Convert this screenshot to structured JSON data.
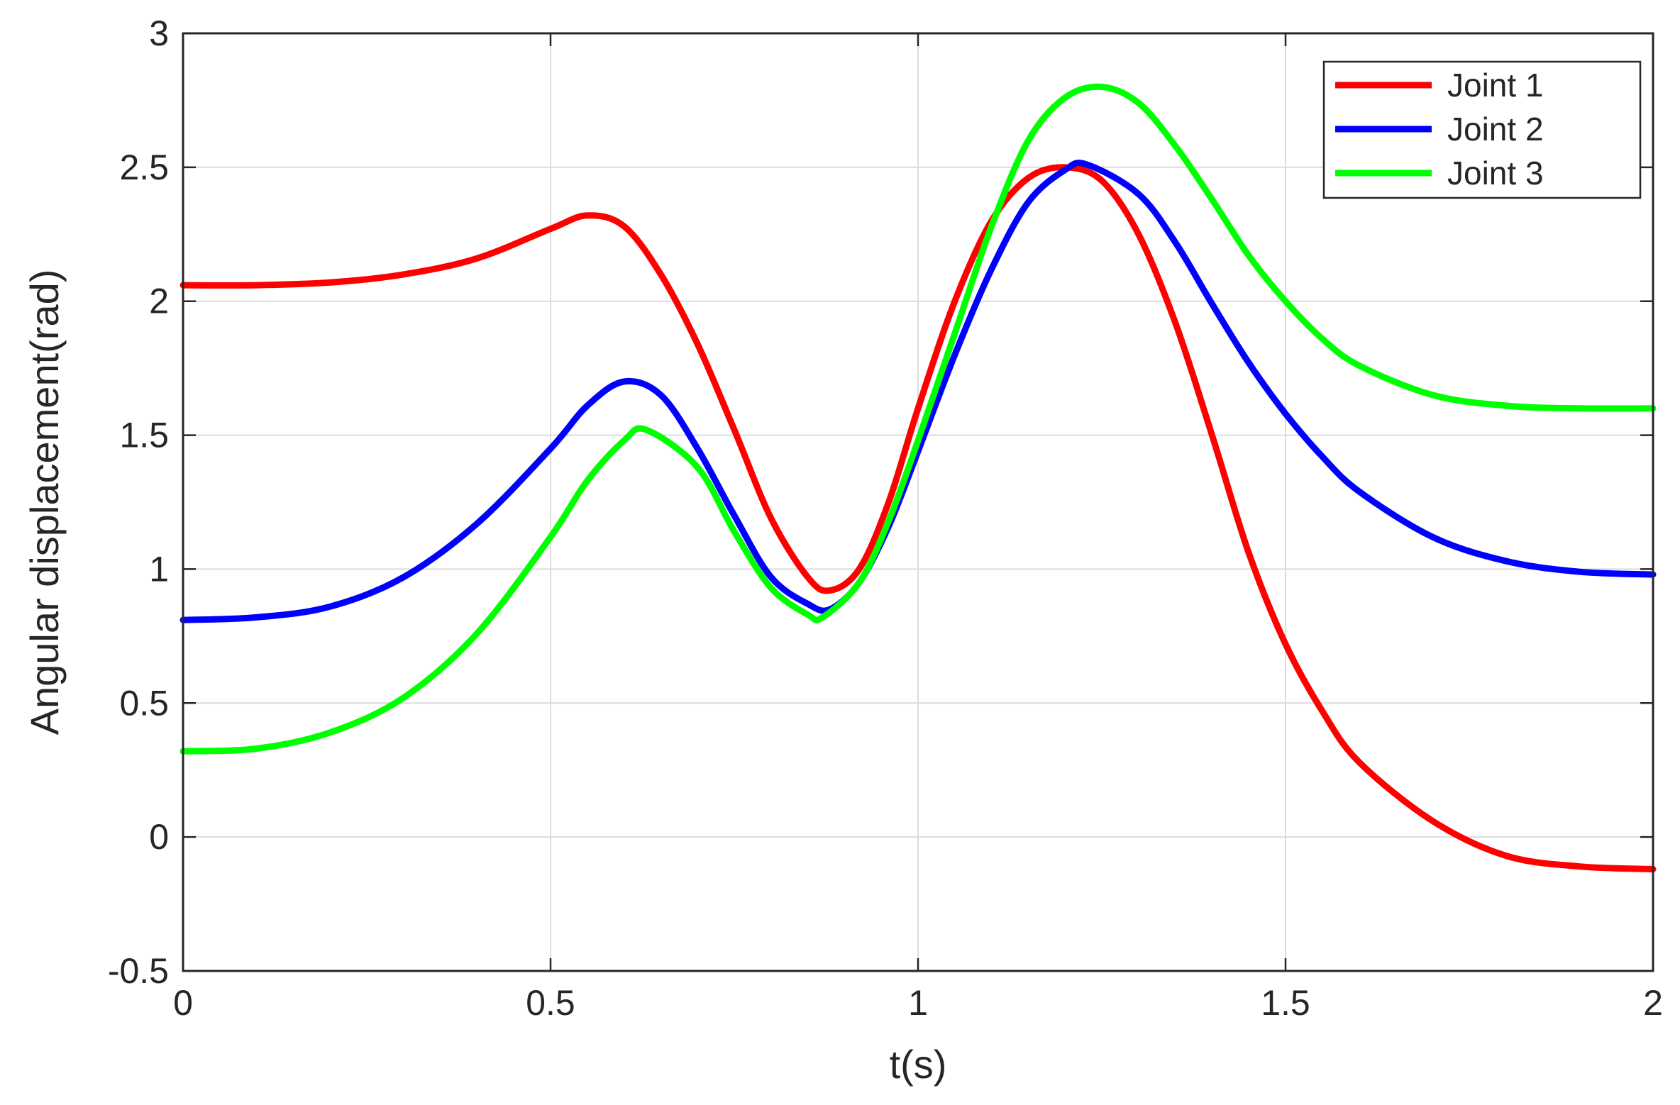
{
  "chart_data": {
    "type": "line",
    "title": "",
    "xlabel": "t(s)",
    "ylabel": "Angular displacement(rad)",
    "xlim": [
      0,
      2
    ],
    "ylim": [
      -0.5,
      3
    ],
    "xticks": [
      0,
      0.5,
      1,
      1.5,
      2
    ],
    "xtick_labels": [
      "0",
      "0.5",
      "1",
      "1.5",
      "2"
    ],
    "yticks": [
      -0.5,
      0,
      0.5,
      1,
      1.5,
      2,
      2.5,
      3
    ],
    "ytick_labels": [
      "-0.5",
      "0",
      "0.5",
      "1",
      "1.5",
      "2",
      "2.5",
      "3"
    ],
    "grid": true,
    "legend_position": "top-right",
    "series": [
      {
        "name": "Joint 1",
        "color": "#ff0000",
        "x": [
          0,
          0.1,
          0.2,
          0.3,
          0.4,
          0.5,
          0.55,
          0.6,
          0.65,
          0.7,
          0.75,
          0.8,
          0.85,
          0.88,
          0.92,
          0.96,
          1.0,
          1.05,
          1.1,
          1.15,
          1.2,
          1.25,
          1.3,
          1.35,
          1.4,
          1.45,
          1.5,
          1.55,
          1.6,
          1.7,
          1.8,
          1.9,
          2.0
        ],
        "y": [
          2.06,
          2.06,
          2.07,
          2.1,
          2.16,
          2.27,
          2.32,
          2.28,
          2.1,
          1.84,
          1.52,
          1.19,
          0.97,
          0.92,
          1.0,
          1.25,
          1.6,
          2.0,
          2.3,
          2.46,
          2.5,
          2.45,
          2.25,
          1.92,
          1.5,
          1.06,
          0.72,
          0.47,
          0.28,
          0.06,
          -0.07,
          -0.11,
          -0.12
        ]
      },
      {
        "name": "Joint 2",
        "color": "#0000ff",
        "x": [
          0,
          0.1,
          0.2,
          0.3,
          0.4,
          0.5,
          0.55,
          0.6,
          0.65,
          0.7,
          0.75,
          0.8,
          0.85,
          0.88,
          0.92,
          0.96,
          1.0,
          1.05,
          1.1,
          1.15,
          1.2,
          1.23,
          1.3,
          1.35,
          1.4,
          1.45,
          1.5,
          1.55,
          1.6,
          1.7,
          1.8,
          1.9,
          2.0
        ],
        "y": [
          0.81,
          0.82,
          0.86,
          0.97,
          1.17,
          1.45,
          1.61,
          1.7,
          1.65,
          1.45,
          1.2,
          0.97,
          0.87,
          0.85,
          0.95,
          1.16,
          1.44,
          1.8,
          2.12,
          2.37,
          2.49,
          2.51,
          2.4,
          2.22,
          1.99,
          1.77,
          1.58,
          1.42,
          1.29,
          1.12,
          1.03,
          0.99,
          0.98
        ]
      },
      {
        "name": "Joint 3",
        "color": "#00ff00",
        "x": [
          0,
          0.1,
          0.2,
          0.3,
          0.4,
          0.5,
          0.55,
          0.6,
          0.63,
          0.7,
          0.75,
          0.8,
          0.85,
          0.87,
          0.92,
          0.96,
          1.0,
          1.05,
          1.1,
          1.15,
          1.2,
          1.25,
          1.3,
          1.35,
          1.4,
          1.45,
          1.5,
          1.55,
          1.6,
          1.7,
          1.8,
          1.9,
          2.0
        ],
        "y": [
          0.32,
          0.33,
          0.39,
          0.52,
          0.76,
          1.12,
          1.33,
          1.48,
          1.52,
          1.38,
          1.14,
          0.93,
          0.83,
          0.82,
          0.95,
          1.18,
          1.48,
          1.88,
          2.28,
          2.6,
          2.76,
          2.8,
          2.74,
          2.58,
          2.38,
          2.17,
          2.0,
          1.86,
          1.76,
          1.65,
          1.61,
          1.6,
          1.6
        ]
      }
    ]
  }
}
